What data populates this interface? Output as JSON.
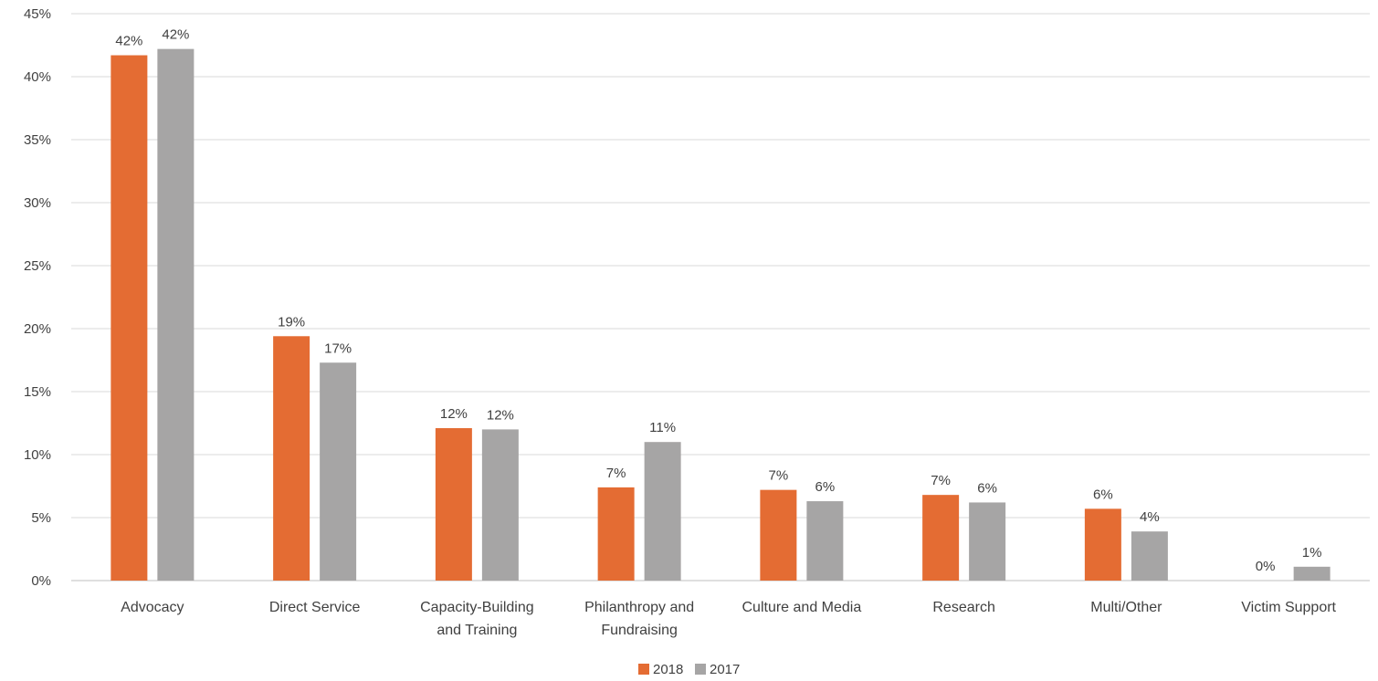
{
  "chart_data": {
    "type": "bar",
    "categories": [
      [
        "Advocacy"
      ],
      [
        "Direct Service"
      ],
      [
        "Capacity-Building",
        "and Training"
      ],
      [
        "Philanthropy and",
        "Fundraising"
      ],
      [
        "Culture and Media"
      ],
      [
        "Research"
      ],
      [
        "Multi/Other"
      ],
      [
        "Victim Support"
      ]
    ],
    "series": [
      {
        "name": "2018",
        "color": "#E46C33",
        "values": [
          41.7,
          19.4,
          12.1,
          7.4,
          7.2,
          6.8,
          5.7,
          0
        ],
        "labels": [
          "42%",
          "19%",
          "12%",
          "7%",
          "7%",
          "7%",
          "6%",
          "0%"
        ]
      },
      {
        "name": "2017",
        "color": "#A6A5A5",
        "values": [
          42.2,
          17.3,
          12.0,
          11.0,
          6.3,
          6.2,
          3.9,
          1.1
        ],
        "labels": [
          "42%",
          "17%",
          "12%",
          "11%",
          "6%",
          "6%",
          "4%",
          "1%"
        ]
      }
    ],
    "ylim": [
      0,
      45
    ],
    "yticks": [
      "0%",
      "5%",
      "10%",
      "15%",
      "20%",
      "25%",
      "30%",
      "35%",
      "40%",
      "45%"
    ],
    "grid": true,
    "legend_position": "bottom",
    "title": "",
    "xlabel": "",
    "ylabel": ""
  }
}
